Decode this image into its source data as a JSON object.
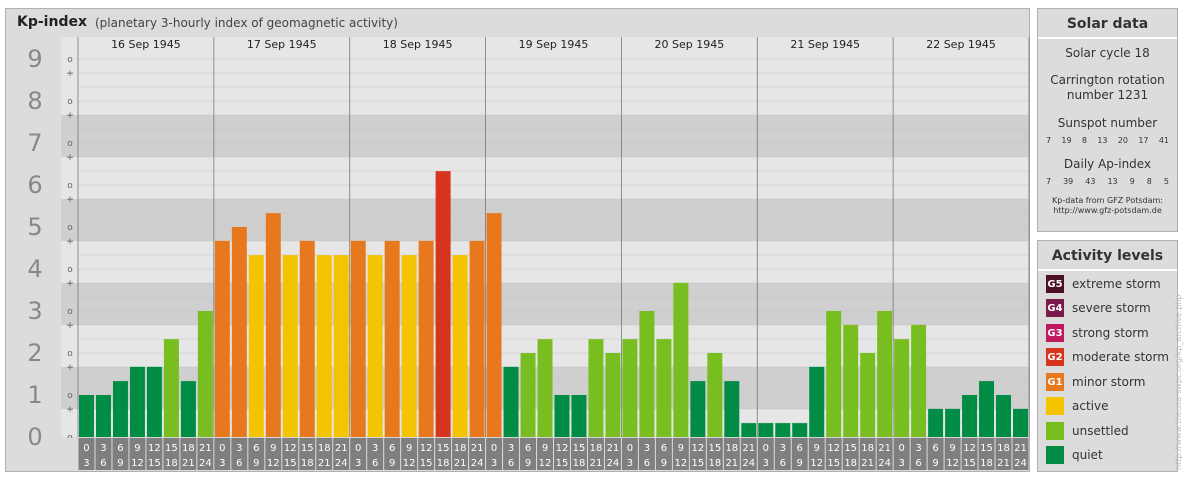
{
  "header": {
    "title": "Kp-index",
    "subtitle": "(planetary 3-hourly index of geomagnetic activity)"
  },
  "chart_data": {
    "type": "bar",
    "y_axis_labels": [
      "0",
      "1",
      "2",
      "3",
      "4",
      "5",
      "6",
      "7",
      "8",
      "9"
    ],
    "y_minor_labels": [
      "+",
      "o",
      "−"
    ],
    "ylim": [
      0,
      9.33
    ],
    "days": [
      "16 Sep 1945",
      "17 Sep 1945",
      "18 Sep 1945",
      "19 Sep 1945",
      "20 Sep 1945",
      "21 Sep 1945",
      "22 Sep 1945"
    ],
    "hour_labels": [
      [
        "0",
        "3"
      ],
      [
        "3",
        "6"
      ],
      [
        "6",
        "9"
      ],
      [
        "9",
        "12"
      ],
      [
        "12",
        "15"
      ],
      [
        "15",
        "18"
      ],
      [
        "18",
        "21"
      ],
      [
        "21",
        "24"
      ]
    ],
    "values": [
      1.0,
      1.0,
      1.33,
      1.67,
      1.67,
      2.33,
      1.33,
      3.0,
      4.67,
      5.0,
      4.33,
      5.33,
      4.33,
      4.67,
      4.33,
      4.33,
      4.67,
      4.33,
      4.67,
      4.33,
      4.67,
      6.33,
      4.33,
      4.67,
      5.33,
      1.67,
      2.0,
      2.33,
      1.0,
      1.0,
      2.33,
      2.0,
      2.33,
      3.0,
      2.33,
      3.67,
      1.33,
      2.0,
      1.33,
      0.33,
      0.33,
      0.33,
      0.33,
      1.67,
      3.0,
      2.67,
      2.0,
      3.0,
      2.33,
      2.67,
      0.67,
      0.67,
      1.0,
      1.33,
      1.0,
      0.67
    ],
    "colors": {
      "quiet": "#008c45",
      "unsettled": "#78be20",
      "active": "#f5c400",
      "minor": "#e8781e",
      "moderate": "#d7341e",
      "strong": "#c0175d",
      "severe": "#7a1a4a",
      "extreme": "#4b0f28"
    }
  },
  "solar_data": {
    "title": "Solar data",
    "solar_cycle": "Solar cycle 18",
    "carrington_line1": "Carrington rotation",
    "carrington_line2": "number 1231",
    "sunspot_title": "Sunspot number",
    "sunspot_values": [
      "7",
      "19",
      "8",
      "13",
      "20",
      "17",
      "41"
    ],
    "ap_title": "Daily Ap-index",
    "ap_values": [
      "7",
      "39",
      "43",
      "13",
      "9",
      "8",
      "5"
    ],
    "source_line1": "Kp-data from GFZ Potsdam:",
    "source_line2": "http://www.gfz-potsdam.de"
  },
  "activity_levels": {
    "title": "Activity levels",
    "items": [
      {
        "code": "G5",
        "label": "extreme storm",
        "color": "#4b0f28"
      },
      {
        "code": "G4",
        "label": "severe storm",
        "color": "#7a1a4a"
      },
      {
        "code": "G3",
        "label": "strong storm",
        "color": "#c0175d"
      },
      {
        "code": "G2",
        "label": "moderate storm",
        "color": "#d7341e"
      },
      {
        "code": "G1",
        "label": "minor storm",
        "color": "#e8781e"
      },
      {
        "code": "",
        "label": "active",
        "color": "#f5c400"
      },
      {
        "code": "",
        "label": "unsettled",
        "color": "#78be20"
      },
      {
        "code": "",
        "label": "quiet",
        "color": "#008c45"
      }
    ]
  },
  "watermark": "http://www.theusa-swpc.org/kp_archive.php"
}
